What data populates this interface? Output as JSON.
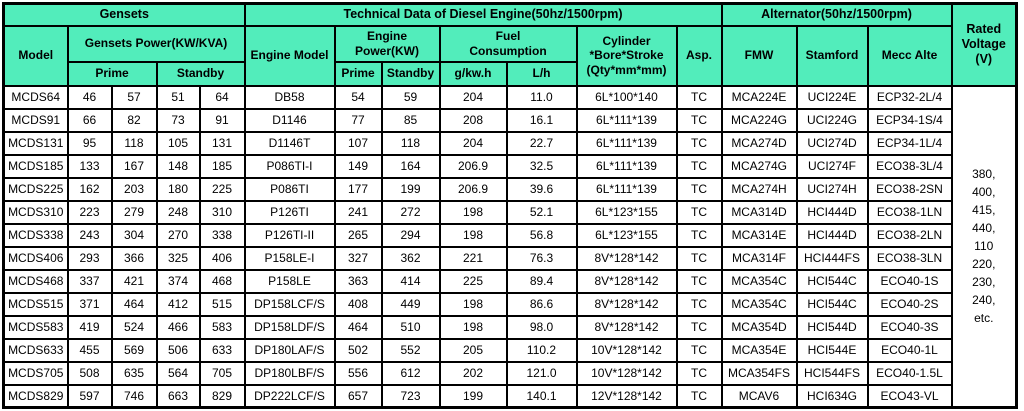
{
  "colors": {
    "header_bg": "#52EDBB",
    "border": "#000000",
    "cell_bg": "#FFFFFF",
    "text": "#000000"
  },
  "header": {
    "group_gensets": "Gensets",
    "group_engine": "Technical Data of Diesel Engine(50hz/1500rpm)",
    "group_alternator": "Alternator(50hz/1500rpm)",
    "rated_voltage": "Rated\nVoltage\n(V)",
    "model": "Model",
    "gensets_power": "Gensets Power(KW/KVA)",
    "prime": "Prime",
    "standby": "Standby",
    "engine_model": "Engine Model",
    "engine_power": "Engine\nPower(KW)",
    "engine_prime": "Prime",
    "engine_standby": "Standby",
    "fuel_consumption": "Fuel\nConsumption",
    "g_kwh": "g/kw.h",
    "lh": "L/h",
    "cylinder": "Cylinder\n*Bore*Stroke\n(Qty*mm*mm)",
    "asp": "Asp.",
    "fmw": "FMW",
    "stamford": "Stamford",
    "mecc_alte": "Mecc Alte"
  },
  "rated_voltage_values": "380,\n400,\n415,\n440,\n110\n220,\n230,\n240,\netc.",
  "rows": [
    [
      "MCDS64",
      "46",
      "57",
      "51",
      "64",
      "DB58",
      "54",
      "59",
      "204",
      "11.0",
      "6L*100*140",
      "TC",
      "MCA224E",
      "UCI224E",
      "ECP32-2L/4"
    ],
    [
      "MCDS91",
      "66",
      "82",
      "73",
      "91",
      "D1146",
      "77",
      "85",
      "208",
      "16.1",
      "6L*111*139",
      "TC",
      "MCA224G",
      "UCI224G",
      "ECP34-1S/4"
    ],
    [
      "MCDS131",
      "95",
      "118",
      "105",
      "131",
      "D1146T",
      "107",
      "118",
      "204",
      "22.7",
      "6L*111*139",
      "TC",
      "MCA274D",
      "UCI274D",
      "ECP34-1L/4"
    ],
    [
      "MCDS185",
      "133",
      "167",
      "148",
      "185",
      "P086TI-I",
      "149",
      "164",
      "206.9",
      "32.5",
      "6L*111*139",
      "TC",
      "MCA274G",
      "UCI274F",
      "ECO38-3L/4"
    ],
    [
      "MCDS225",
      "162",
      "203",
      "180",
      "225",
      "P086TI",
      "177",
      "199",
      "206.9",
      "39.6",
      "6L*111*139",
      "TC",
      "MCA274H",
      "UCI274H",
      "ECO38-2SN"
    ],
    [
      "MCDS310",
      "223",
      "279",
      "248",
      "310",
      "P126TI",
      "241",
      "272",
      "198",
      "52.1",
      "6L*123*155",
      "TC",
      "MCA314D",
      "HCI444D",
      "ECO38-1LN"
    ],
    [
      "MCDS338",
      "243",
      "304",
      "270",
      "338",
      "P126TI-II",
      "265",
      "294",
      "198",
      "56.8",
      "6L*123*155",
      "TC",
      "MCA314E",
      "HCI444D",
      "ECO38-2LN"
    ],
    [
      "MCDS406",
      "293",
      "366",
      "325",
      "406",
      "P158LE-I",
      "327",
      "362",
      "221",
      "76.3",
      "8V*128*142",
      "TC",
      "MCA314F",
      "HCI444FS",
      "ECO38-3LN"
    ],
    [
      "MCDS468",
      "337",
      "421",
      "374",
      "468",
      "P158LE",
      "363",
      "414",
      "225",
      "89.4",
      "8V*128*142",
      "TC",
      "MCA354C",
      "HCI544C",
      "ECO40-1S"
    ],
    [
      "MCDS515",
      "371",
      "464",
      "412",
      "515",
      "DP158LCF/S",
      "408",
      "449",
      "198",
      "86.6",
      "8V*128*142",
      "TC",
      "MCA354C",
      "HCI544C",
      "ECO40-2S"
    ],
    [
      "MCDS583",
      "419",
      "524",
      "466",
      "583",
      "DP158LDF/S",
      "464",
      "510",
      "198",
      "98.0",
      "8V*128*142",
      "TC",
      "MCA354D",
      "HCI544D",
      "ECO40-3S"
    ],
    [
      "MCDS633",
      "455",
      "569",
      "506",
      "633",
      "DP180LAF/S",
      "502",
      "552",
      "205",
      "110.2",
      "10V*128*142",
      "TC",
      "MCA354E",
      "HCI544E",
      "ECO40-1L"
    ],
    [
      "MCDS705",
      "508",
      "635",
      "564",
      "705",
      "DP180LBF/S",
      "556",
      "612",
      "202",
      "121.0",
      "10V*128*142",
      "TC",
      "MCA354FS",
      "HCI544FS",
      "ECO40-1.5L"
    ],
    [
      "MCDS829",
      "597",
      "746",
      "663",
      "829",
      "DP222LCF/S",
      "657",
      "723",
      "199",
      "140.1",
      "12V*128*142",
      "TC",
      "MCAV6",
      "HCI634G",
      "ECO43-VL"
    ]
  ]
}
